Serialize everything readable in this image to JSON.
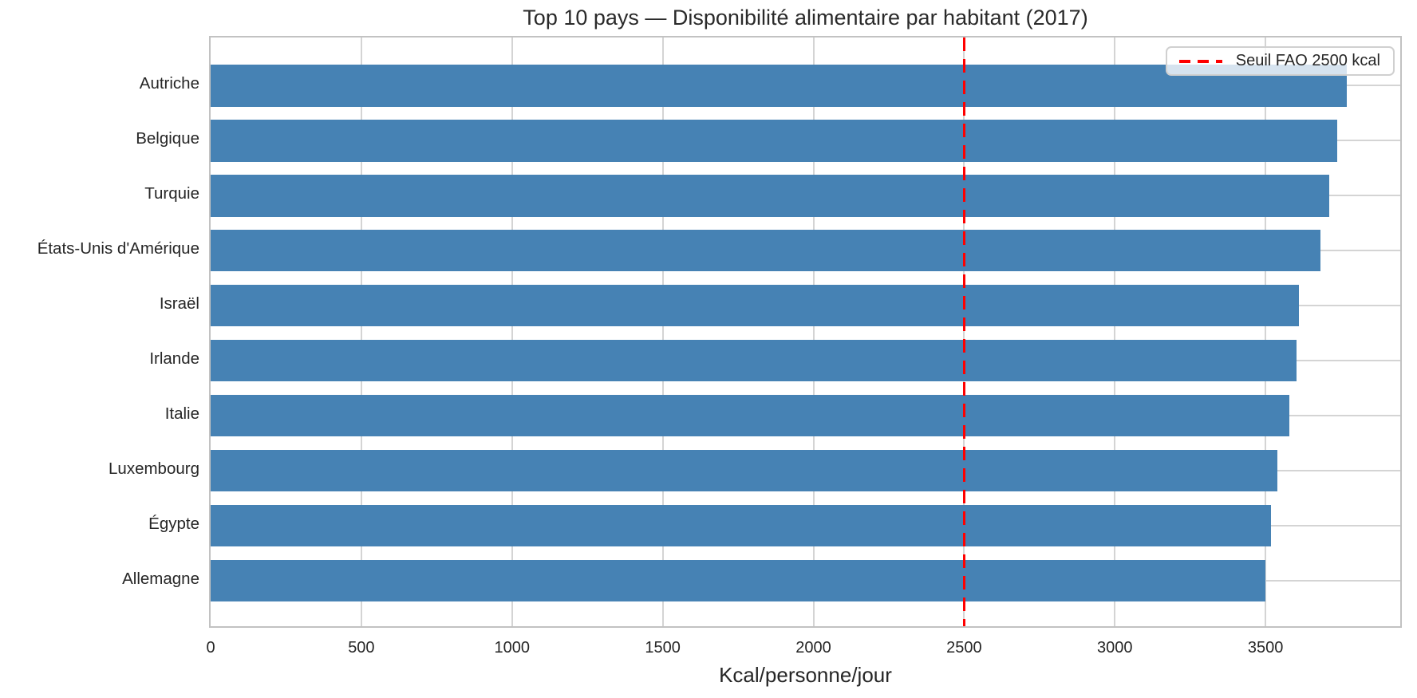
{
  "chart_data": {
    "type": "bar",
    "orientation": "horizontal",
    "title": "Top 10 pays — Disponibilité alimentaire par habitant (2017)",
    "xlabel": "Kcal/personne/jour",
    "ylabel": "",
    "categories": [
      "Autriche",
      "Belgique",
      "Turquie",
      "États-Unis d'Amérique",
      "Israël",
      "Irlande",
      "Italie",
      "Luxembourg",
      "Égypte",
      "Allemagne"
    ],
    "values": [
      3770,
      3737,
      3711,
      3682,
      3610,
      3602,
      3578,
      3539,
      3518,
      3499
    ],
    "xticks": [
      0,
      500,
      1000,
      1500,
      2000,
      2500,
      3000,
      3500
    ],
    "xlim": [
      0,
      3947
    ],
    "grid": "both",
    "legend_position": "upper-right",
    "threshold_line": {
      "value": 2500,
      "label": "Seuil FAO 2500 kcal",
      "color": "#ff0000",
      "style": "dashed"
    },
    "legend": {
      "entries": [
        {
          "label": "Seuil FAO 2500 kcal",
          "marker": "red-dashed-line",
          "color": "#ff0000"
        }
      ]
    }
  },
  "colors": {
    "bar": "#4682b4",
    "threshold": "#ff0000",
    "gridline": "#d4d4d4",
    "spine": "#c2c2c2",
    "text": "#262626",
    "background": "#ffffff",
    "legend_background": "rgba(255,255,255,0.78)",
    "legend_border": "#d0d0d0"
  }
}
